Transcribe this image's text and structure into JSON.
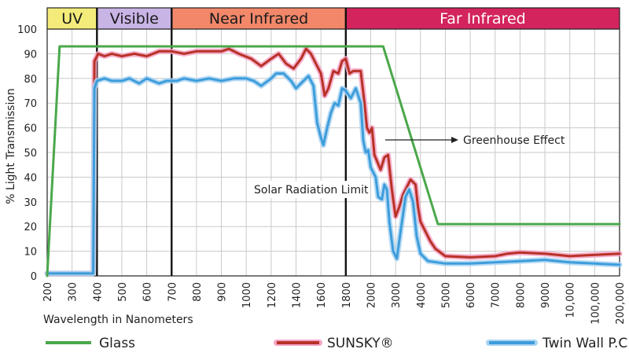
{
  "chart_data": {
    "type": "line",
    "ylabel": "% Light Transmission",
    "xlabel": "Wavelength in Nanometers",
    "ylim": [
      0,
      100
    ],
    "y_ticks": [
      "0",
      "10",
      "20",
      "30",
      "40",
      "50",
      "60",
      "70",
      "80",
      "90",
      "100"
    ],
    "x_ticks": [
      "200",
      "300",
      "400",
      "500",
      "600",
      "700",
      "800",
      "900",
      "1000",
      "1200",
      "1400",
      "1600",
      "1800",
      "2000",
      "3000",
      "4000",
      "5000",
      "6000",
      "7000",
      "8000",
      "9000",
      "10,000",
      "100,000",
      "200,000"
    ],
    "bands": [
      {
        "label": "UV",
        "color": "#f4ec7a",
        "from_tick": 0,
        "to_tick": 2
      },
      {
        "label": "Visible",
        "color": "#c9b4e6",
        "from_tick": 2,
        "to_tick": 5
      },
      {
        "label": "Near Infrared",
        "color": "#f2876a",
        "from_tick": 5,
        "to_tick": 12
      },
      {
        "label": "Far Infrared",
        "color": "#d3245d",
        "from_tick": 12,
        "to_tick": 23
      }
    ],
    "annotations": {
      "greenhouse": "Greenhouse Effect",
      "solar": "Solar Radiation Limit"
    },
    "series": [
      {
        "name": "Glass",
        "color": "#4aa84a",
        "points": [
          [
            0,
            0
          ],
          [
            0.5,
            93
          ],
          [
            13.5,
            93
          ],
          [
            15.7,
            21
          ],
          [
            23,
            21
          ]
        ]
      },
      {
        "name": "SUNSKY®",
        "color": "#b83227",
        "glow": "#f4a3c6",
        "points": [
          [
            0,
            1
          ],
          [
            1.8,
            1
          ],
          [
            1.85,
            2
          ],
          [
            1.9,
            87
          ],
          [
            2.05,
            90
          ],
          [
            2.3,
            89
          ],
          [
            2.6,
            90
          ],
          [
            3.0,
            89
          ],
          [
            3.5,
            90
          ],
          [
            4.0,
            89
          ],
          [
            4.5,
            91
          ],
          [
            5.0,
            91
          ],
          [
            5.5,
            90
          ],
          [
            6.0,
            91
          ],
          [
            6.5,
            91
          ],
          [
            7.0,
            91
          ],
          [
            7.3,
            92
          ],
          [
            7.7,
            90
          ],
          [
            8.2,
            88
          ],
          [
            8.6,
            85
          ],
          [
            9.0,
            88
          ],
          [
            9.3,
            90
          ],
          [
            9.6,
            86
          ],
          [
            9.9,
            84
          ],
          [
            10.2,
            88
          ],
          [
            10.4,
            92
          ],
          [
            10.6,
            90
          ],
          [
            10.8,
            86
          ],
          [
            11.0,
            82
          ],
          [
            11.15,
            73
          ],
          [
            11.3,
            76
          ],
          [
            11.5,
            83
          ],
          [
            11.7,
            82
          ],
          [
            11.85,
            87
          ],
          [
            12.0,
            88
          ],
          [
            12.15,
            82
          ],
          [
            12.3,
            83
          ],
          [
            12.6,
            83
          ],
          [
            12.75,
            70
          ],
          [
            12.85,
            60
          ],
          [
            12.95,
            58
          ],
          [
            13.05,
            60
          ],
          [
            13.15,
            49
          ],
          [
            13.4,
            43
          ],
          [
            13.55,
            48
          ],
          [
            13.7,
            49
          ],
          [
            13.85,
            35
          ],
          [
            14.0,
            24
          ],
          [
            14.15,
            28
          ],
          [
            14.3,
            33
          ],
          [
            14.5,
            37
          ],
          [
            14.6,
            39
          ],
          [
            14.8,
            37
          ],
          [
            14.9,
            28
          ],
          [
            15.0,
            22
          ],
          [
            15.2,
            18
          ],
          [
            15.4,
            14
          ],
          [
            15.6,
            11
          ],
          [
            16.0,
            8
          ],
          [
            17.0,
            7.5
          ],
          [
            18.0,
            8
          ],
          [
            18.5,
            9
          ],
          [
            19.0,
            9.5
          ],
          [
            20.0,
            9
          ],
          [
            20.5,
            8.5
          ],
          [
            21.0,
            8
          ],
          [
            22.0,
            8.5
          ],
          [
            23.0,
            9
          ]
        ]
      },
      {
        "name": "Twin Wall P.C.",
        "color": "#3d9ddb",
        "glow": "#aad4f2",
        "points": [
          [
            0,
            1
          ],
          [
            1.85,
            1
          ],
          [
            1.9,
            76
          ],
          [
            2.0,
            79
          ],
          [
            2.3,
            80
          ],
          [
            2.6,
            79
          ],
          [
            3.0,
            79
          ],
          [
            3.3,
            80
          ],
          [
            3.7,
            78
          ],
          [
            4.0,
            80
          ],
          [
            4.5,
            78
          ],
          [
            4.8,
            79
          ],
          [
            5.2,
            79
          ],
          [
            5.5,
            80
          ],
          [
            6.0,
            79
          ],
          [
            6.5,
            80
          ],
          [
            7.0,
            79
          ],
          [
            7.5,
            80
          ],
          [
            8.0,
            80
          ],
          [
            8.3,
            79
          ],
          [
            8.6,
            77
          ],
          [
            9.0,
            80
          ],
          [
            9.2,
            82
          ],
          [
            9.5,
            82
          ],
          [
            9.8,
            79
          ],
          [
            10.0,
            76
          ],
          [
            10.3,
            79
          ],
          [
            10.5,
            81
          ],
          [
            10.7,
            77
          ],
          [
            10.85,
            62
          ],
          [
            11.0,
            56
          ],
          [
            11.1,
            53
          ],
          [
            11.25,
            60
          ],
          [
            11.4,
            66
          ],
          [
            11.55,
            70
          ],
          [
            11.7,
            69
          ],
          [
            11.85,
            76
          ],
          [
            12.0,
            75
          ],
          [
            12.2,
            72
          ],
          [
            12.4,
            76
          ],
          [
            12.6,
            70
          ],
          [
            12.7,
            55
          ],
          [
            12.8,
            50
          ],
          [
            12.9,
            51
          ],
          [
            13.0,
            44
          ],
          [
            13.2,
            40
          ],
          [
            13.3,
            32
          ],
          [
            13.45,
            31
          ],
          [
            13.55,
            37
          ],
          [
            13.65,
            35
          ],
          [
            13.75,
            22
          ],
          [
            13.9,
            10
          ],
          [
            14.05,
            7
          ],
          [
            14.2,
            18
          ],
          [
            14.4,
            32
          ],
          [
            14.55,
            35
          ],
          [
            14.7,
            30
          ],
          [
            14.85,
            16
          ],
          [
            15.0,
            9
          ],
          [
            15.3,
            6
          ],
          [
            16.0,
            5
          ],
          [
            17.0,
            5
          ],
          [
            18.0,
            5.5
          ],
          [
            19.0,
            6
          ],
          [
            20.0,
            6.5
          ],
          [
            21.0,
            5.5
          ],
          [
            22.0,
            5
          ],
          [
            23.0,
            4.5
          ]
        ]
      }
    ]
  }
}
